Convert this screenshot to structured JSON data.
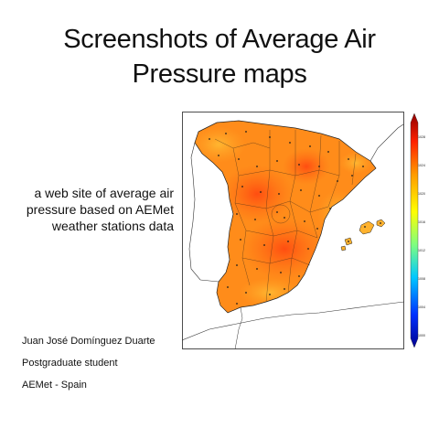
{
  "slide": {
    "title_line1": "Screenshots of Average Air",
    "title_line2": "Pressure maps",
    "subtitle_line1": "a web site of average air",
    "subtitle_line2": "pressure based on AEMet",
    "subtitle_line3": "weather stations data",
    "author_name": "Juan José Domínguez Duarte",
    "author_role": "Postgraduate student",
    "author_org": "AEMet - Spain"
  },
  "map": {
    "region": "Iberian Peninsula and Balearic Islands",
    "colormap": [
      "#00008f",
      "#0060ff",
      "#00e5ff",
      "#7fff7f",
      "#ffff00",
      "#ff9a00",
      "#ff2000",
      "#8f0000"
    ],
    "land_fill": "#ff8c1a",
    "high_pressure_fill": "#ff5a10",
    "low_pressure_fill": "#ffb22e",
    "colorbar_ticks": [
      "1028",
      "1024",
      "1020",
      "1016",
      "1012",
      "1008",
      "1004",
      "1000"
    ]
  }
}
